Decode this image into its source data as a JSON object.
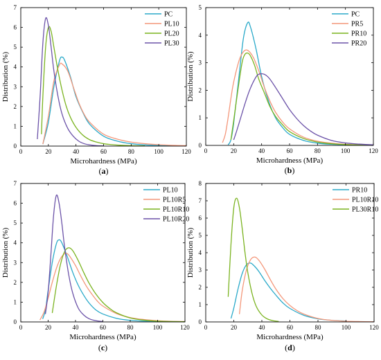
{
  "chart_data": [
    {
      "type": "line",
      "panel": "a",
      "xlabel": "Microhardness (MPa)",
      "ylabel": "Distribution (%)",
      "xlim": [
        0,
        120
      ],
      "ylim": [
        0,
        7
      ],
      "xticks": [
        0,
        20,
        40,
        60,
        80,
        100,
        120
      ],
      "yticks": [
        0,
        1,
        2,
        3,
        4,
        5,
        6,
        7
      ],
      "legend_position": "top-right",
      "series": [
        {
          "name": "PC",
          "color": "#29a9c9",
          "x": [
            16,
            20,
            24,
            28,
            30,
            32,
            36,
            40,
            45,
            50,
            60,
            70,
            80,
            90,
            100,
            110,
            120
          ],
          "y": [
            0.1,
            1.2,
            3.0,
            4.3,
            4.5,
            4.3,
            3.5,
            2.5,
            1.7,
            1.1,
            0.5,
            0.25,
            0.12,
            0.06,
            0.03,
            0.015,
            0.01
          ]
        },
        {
          "name": "PL10",
          "color": "#f4977a",
          "x": [
            16,
            20,
            24,
            28,
            30,
            34,
            38,
            42,
            46,
            50,
            60,
            70,
            80,
            90,
            100,
            110,
            120
          ],
          "y": [
            0.1,
            1.5,
            3.3,
            4.1,
            4.15,
            3.8,
            3.0,
            2.2,
            1.6,
            1.2,
            0.6,
            0.35,
            0.2,
            0.12,
            0.07,
            0.04,
            0.02
          ]
        },
        {
          "name": "PL20",
          "color": "#7ab31f",
          "x": [
            15,
            16,
            18,
            20,
            22,
            24,
            27,
            30,
            33,
            36,
            40,
            45,
            50,
            55,
            60,
            65,
            70,
            80,
            90
          ],
          "y": [
            0.6,
            2.5,
            5.0,
            6.0,
            5.8,
            5.0,
            3.8,
            2.8,
            2.0,
            1.45,
            0.95,
            0.55,
            0.32,
            0.2,
            0.12,
            0.08,
            0.05,
            0.02,
            0.01
          ]
        },
        {
          "name": "PL30",
          "color": "#6b52a8",
          "x": [
            12,
            14,
            16,
            18,
            20,
            22,
            24,
            27,
            30,
            34,
            38,
            42,
            46,
            50,
            55,
            60
          ],
          "y": [
            0.35,
            2.5,
            5.2,
            6.45,
            6.1,
            5.0,
            3.8,
            2.5,
            1.6,
            0.9,
            0.5,
            0.25,
            0.12,
            0.06,
            0.02,
            0.01
          ]
        }
      ],
      "caption": "(a)"
    },
    {
      "type": "line",
      "panel": "b",
      "xlabel": "Microhardness (MPa)",
      "ylabel": "Distribution (%)",
      "xlim": [
        0,
        120
      ],
      "ylim": [
        0,
        5
      ],
      "xticks": [
        0,
        20,
        40,
        60,
        80,
        100,
        120
      ],
      "yticks": [
        0,
        1,
        2,
        3,
        4,
        5
      ],
      "legend_position": "top-right",
      "series": [
        {
          "name": "PC",
          "color": "#29a9c9",
          "x": [
            16,
            18,
            20,
            24,
            27,
            30,
            32,
            36,
            40,
            45,
            50,
            55,
            60,
            70,
            80,
            90,
            100,
            110,
            120
          ],
          "y": [
            0.02,
            0.2,
            0.8,
            2.6,
            3.9,
            4.45,
            4.3,
            3.5,
            2.5,
            1.6,
            1.0,
            0.65,
            0.4,
            0.18,
            0.08,
            0.04,
            0.02,
            0.01,
            0.005
          ]
        },
        {
          "name": "PR5",
          "color": "#f4977a",
          "x": [
            12,
            14,
            16,
            18,
            20,
            24,
            27,
            30,
            34,
            38,
            42,
            46,
            50,
            55,
            60,
            70,
            80,
            90,
            100,
            110,
            120
          ],
          "y": [
            0.1,
            0.4,
            1.0,
            1.7,
            2.3,
            3.1,
            3.4,
            3.45,
            3.2,
            2.7,
            2.1,
            1.6,
            1.2,
            0.85,
            0.6,
            0.3,
            0.15,
            0.08,
            0.04,
            0.02,
            0.01
          ]
        },
        {
          "name": "PR10",
          "color": "#7ab31f",
          "x": [
            18,
            20,
            23,
            26,
            28,
            30,
            32,
            35,
            38,
            42,
            46,
            50,
            55,
            60,
            70,
            80,
            90,
            100,
            110,
            120
          ],
          "y": [
            0.2,
            0.9,
            2.0,
            3.0,
            3.3,
            3.35,
            3.25,
            2.9,
            2.4,
            1.9,
            1.4,
            1.05,
            0.75,
            0.5,
            0.25,
            0.12,
            0.06,
            0.03,
            0.015,
            0.01
          ]
        },
        {
          "name": "PR20",
          "color": "#6b52a8",
          "x": [
            20,
            22,
            25,
            28,
            31,
            34,
            37,
            40,
            43,
            46,
            50,
            55,
            60,
            65,
            70,
            75,
            80,
            90,
            100,
            110,
            120
          ],
          "y": [
            0.2,
            0.5,
            1.0,
            1.5,
            1.95,
            2.3,
            2.55,
            2.6,
            2.55,
            2.4,
            2.1,
            1.7,
            1.3,
            0.98,
            0.72,
            0.52,
            0.37,
            0.18,
            0.09,
            0.045,
            0.02
          ]
        }
      ],
      "caption": "(b)"
    },
    {
      "type": "line",
      "panel": "c",
      "xlabel": "Microhardness (MPa)",
      "ylabel": "Distribution (%)",
      "xlim": [
        0,
        120
      ],
      "ylim": [
        0,
        7
      ],
      "xticks": [
        0,
        20,
        40,
        60,
        80,
        100,
        120
      ],
      "yticks": [
        0,
        1,
        2,
        3,
        4,
        5,
        6,
        7
      ],
      "legend_position": "top-right",
      "series": [
        {
          "name": "PL10",
          "color": "#29a9c9",
          "x": [
            16,
            18,
            20,
            23,
            26,
            28,
            30,
            34,
            38,
            42,
            46,
            50,
            55,
            60,
            70,
            80,
            90,
            100,
            110,
            120
          ],
          "y": [
            0.15,
            0.6,
            1.6,
            3.0,
            3.95,
            4.15,
            4.0,
            3.3,
            2.5,
            1.85,
            1.35,
            0.95,
            0.6,
            0.4,
            0.18,
            0.08,
            0.04,
            0.02,
            0.01,
            0.01
          ]
        },
        {
          "name": "PL10R5",
          "color": "#f4977a",
          "x": [
            14,
            17,
            20,
            23,
            26,
            29,
            32,
            34,
            36,
            40,
            44,
            48,
            52,
            56,
            60,
            70,
            80,
            90,
            100,
            110,
            120
          ],
          "y": [
            0.1,
            0.5,
            1.2,
            2.0,
            2.7,
            3.2,
            3.45,
            3.45,
            3.3,
            2.85,
            2.3,
            1.8,
            1.4,
            1.05,
            0.8,
            0.42,
            0.22,
            0.12,
            0.06,
            0.03,
            0.02
          ]
        },
        {
          "name": "PL10R10",
          "color": "#7ab31f",
          "x": [
            23,
            26,
            29,
            32,
            35,
            38,
            42,
            46,
            50,
            55,
            60,
            65,
            70,
            80,
            90,
            100,
            110,
            120
          ],
          "y": [
            0.45,
            1.8,
            2.9,
            3.55,
            3.75,
            3.6,
            3.1,
            2.5,
            1.95,
            1.4,
            0.98,
            0.68,
            0.46,
            0.2,
            0.09,
            0.04,
            0.02,
            0.01
          ]
        },
        {
          "name": "PL10R20",
          "color": "#6b52a8",
          "x": [
            18,
            20,
            22,
            24,
            26,
            28,
            30,
            32,
            35,
            38,
            42,
            46,
            50,
            55,
            60
          ],
          "y": [
            0.4,
            1.5,
            3.4,
            5.4,
            6.4,
            6.0,
            5.0,
            3.8,
            2.4,
            1.45,
            0.7,
            0.35,
            0.16,
            0.06,
            0.02
          ]
        }
      ],
      "caption": "(c)"
    },
    {
      "type": "line",
      "panel": "d",
      "xlabel": "Microhardness (MPa)",
      "ylabel": "Distribution (%)",
      "xlim": [
        0,
        120
      ],
      "ylim": [
        0,
        8
      ],
      "xticks": [
        0,
        20,
        40,
        60,
        80,
        100,
        120
      ],
      "yticks": [
        0,
        1,
        2,
        3,
        4,
        5,
        6,
        7,
        8
      ],
      "legend_position": "top-right",
      "series": [
        {
          "name": "PR10",
          "color": "#29a9c9",
          "x": [
            18,
            20,
            23,
            26,
            29,
            32,
            35,
            38,
            42,
            46,
            50,
            55,
            60,
            70,
            80,
            90,
            100
          ],
          "y": [
            0.2,
            0.8,
            1.9,
            2.8,
            3.3,
            3.4,
            3.2,
            2.9,
            2.4,
            1.95,
            1.55,
            1.1,
            0.78,
            0.38,
            0.18,
            0.09,
            0.05
          ]
        },
        {
          "name": "PL10R10",
          "color": "#f4977a",
          "x": [
            24,
            26,
            29,
            32,
            35,
            38,
            42,
            46,
            50,
            55,
            60,
            65,
            70,
            80,
            90,
            100,
            110,
            120
          ],
          "y": [
            0.45,
            1.8,
            3.0,
            3.6,
            3.75,
            3.55,
            3.05,
            2.45,
            1.9,
            1.35,
            0.95,
            0.66,
            0.45,
            0.2,
            0.09,
            0.04,
            0.02,
            0.01
          ]
        },
        {
          "name": "PL30R10",
          "color": "#7ab31f",
          "x": [
            16,
            18,
            20,
            22,
            24,
            26,
            28,
            30,
            33,
            36,
            40,
            44,
            48,
            52
          ],
          "y": [
            1.45,
            4.5,
            6.6,
            7.15,
            6.6,
            5.4,
            4.0,
            2.85,
            1.65,
            0.9,
            0.4,
            0.17,
            0.07,
            0.03
          ]
        }
      ],
      "caption": "(d)"
    }
  ]
}
